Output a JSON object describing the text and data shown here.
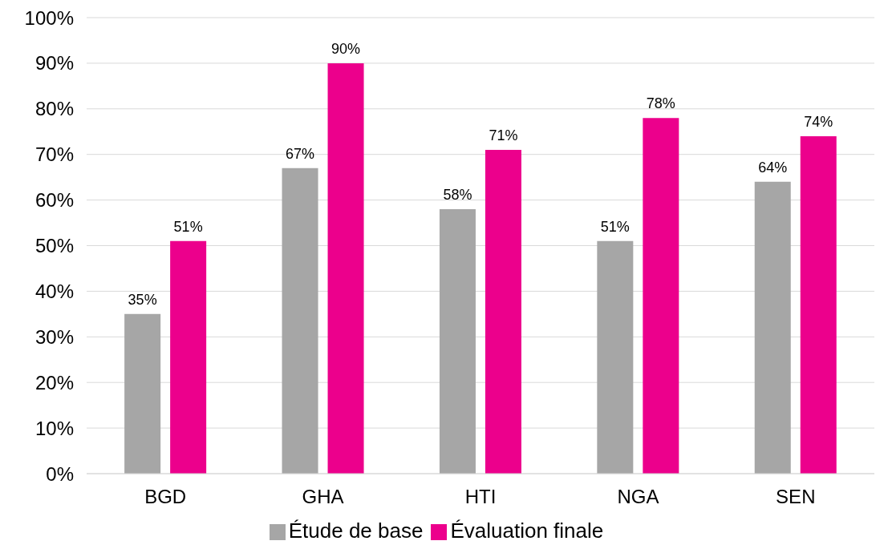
{
  "chart_data": {
    "type": "bar",
    "categories": [
      "BGD",
      "GHA",
      "HTI",
      "NGA",
      "SEN"
    ],
    "series": [
      {
        "name": "Étude de base",
        "color": "#a6a6a6",
        "values": [
          35,
          67,
          58,
          51,
          64
        ],
        "value_labels": [
          "35%",
          "67%",
          "58%",
          "51%",
          "64%"
        ]
      },
      {
        "name": "Évaluation finale",
        "color": "#ec008c",
        "values": [
          51,
          90,
          71,
          78,
          74
        ],
        "value_labels": [
          "51%",
          "90%",
          "71%",
          "78%",
          "74%"
        ]
      }
    ],
    "ylim": [
      0,
      100
    ],
    "yticks": [
      {
        "value": 0,
        "label": "0%"
      },
      {
        "value": 10,
        "label": "10%"
      },
      {
        "value": 20,
        "label": "20%"
      },
      {
        "value": 30,
        "label": "30%"
      },
      {
        "value": 40,
        "label": "40%"
      },
      {
        "value": 50,
        "label": "50%"
      },
      {
        "value": 60,
        "label": "60%"
      },
      {
        "value": 70,
        "label": "70%"
      },
      {
        "value": 80,
        "label": "80%"
      },
      {
        "value": 90,
        "label": "90%"
      },
      {
        "value": 100,
        "label": "100%"
      }
    ],
    "grid": "y",
    "legend": "bottom"
  }
}
